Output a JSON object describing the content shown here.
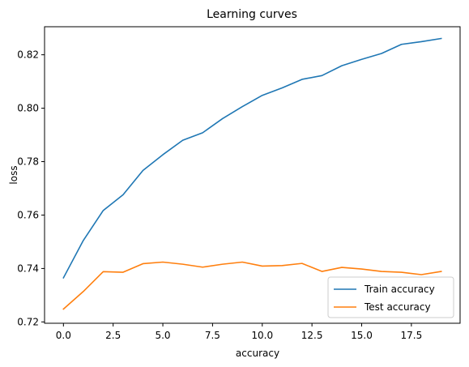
{
  "chart_data": {
    "type": "line",
    "title": "Learning curves",
    "xlabel": "accuracy",
    "ylabel": "loss",
    "xlim": [
      -0.95,
      19.95
    ],
    "ylim": [
      0.7195,
      0.8305
    ],
    "xticks": [
      0.0,
      2.5,
      5.0,
      7.5,
      10.0,
      12.5,
      15.0,
      17.5
    ],
    "xtick_labels": [
      "0.0",
      "2.5",
      "5.0",
      "7.5",
      "10.0",
      "12.5",
      "15.0",
      "17.5"
    ],
    "yticks": [
      0.72,
      0.74,
      0.76,
      0.78,
      0.8,
      0.82
    ],
    "ytick_labels": [
      "0.72",
      "0.74",
      "0.76",
      "0.78",
      "0.80",
      "0.82"
    ],
    "grid": false,
    "legend_position": "lower-right",
    "x": [
      0,
      1,
      2,
      3,
      4,
      5,
      6,
      7,
      8,
      9,
      10,
      11,
      12,
      13,
      14,
      15,
      16,
      17,
      18,
      19
    ],
    "series": [
      {
        "name": "Train accuracy",
        "color": "#1f77b4",
        "values": [
          0.7365,
          0.7505,
          0.7617,
          0.7676,
          0.7767,
          0.7826,
          0.788,
          0.7908,
          0.7961,
          0.8006,
          0.8048,
          0.8076,
          0.8108,
          0.8122,
          0.8159,
          0.8183,
          0.8205,
          0.8239,
          0.8249,
          0.8261
        ]
      },
      {
        "name": "Test accuracy",
        "color": "#ff7f0e",
        "values": [
          0.7248,
          0.7314,
          0.7388,
          0.7386,
          0.7418,
          0.7424,
          0.7416,
          0.7405,
          0.7416,
          0.7424,
          0.7409,
          0.7411,
          0.7419,
          0.7389,
          0.7404,
          0.7398,
          0.7389,
          0.7386,
          0.7377,
          0.7389
        ]
      }
    ]
  }
}
